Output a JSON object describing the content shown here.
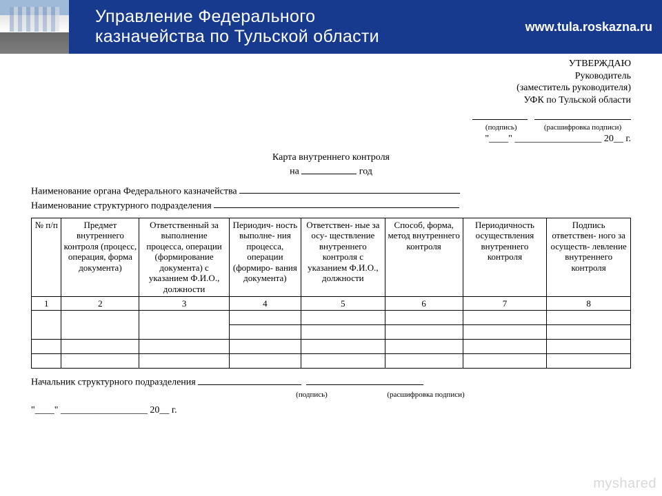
{
  "banner": {
    "title_line1": "Управление Федерального",
    "title_line2": "казначейства по Тульской области",
    "url": "www.tula.roskazna.ru",
    "bg_color": "#173a8f",
    "text_color": "#ffffff"
  },
  "approve": {
    "heading": "УТВЕРЖДАЮ",
    "role": "Руководитель",
    "role_sub": "(заместитель руководителя)",
    "org": "УФК по Тульской области",
    "sig_label": "(подпись)",
    "decipher_label": "(расшифровка подписи)",
    "date_prefix_quote": "\"____\" __________________ 20__ г."
  },
  "doc_title": {
    "line1": "Карта внутреннего контроля",
    "line2_prefix": "на",
    "line2_suffix": "год"
  },
  "meta": {
    "line1": "Наименование органа Федерального казначейства",
    "line2": "Наименование структурного подразделения"
  },
  "table": {
    "col_widths_pct": [
      5,
      13,
      15,
      12,
      14,
      13,
      14,
      14
    ],
    "headers": [
      "№ п/п",
      "Предмет внутреннего контроля (процесс, операция, форма документа)",
      "Ответственный за выполнение процесса, операции (формирование документа) с указанием Ф.И.О., должности",
      "Периодич- ность выполне- ния процесса, операции (формиро- вания документа)",
      "Ответствен- ные за осу- ществление внутреннего контроля с указанием Ф.И.О., должности",
      "Способ, форма, метод внутреннего контроля",
      "Периодичность осуществления внутреннего контроля",
      "Подпись ответствен- ного за осуществ- левление внутреннего контроля"
    ],
    "number_row": [
      "1",
      "2",
      "3",
      "4",
      "5",
      "6",
      "7",
      "8"
    ],
    "blank_rows": 4,
    "merged_first_two_rows_cols": 3
  },
  "footer": {
    "chief": "Начальник структурного подразделения",
    "sig_label": "(подпись)",
    "decipher_label": "(расшифровка подписи)",
    "date": "\"____\" __________________ 20__ г."
  },
  "watermark": "myshared",
  "colors": {
    "text": "#000000",
    "page_bg": "#ffffff",
    "watermark": "#d9d9d9"
  }
}
